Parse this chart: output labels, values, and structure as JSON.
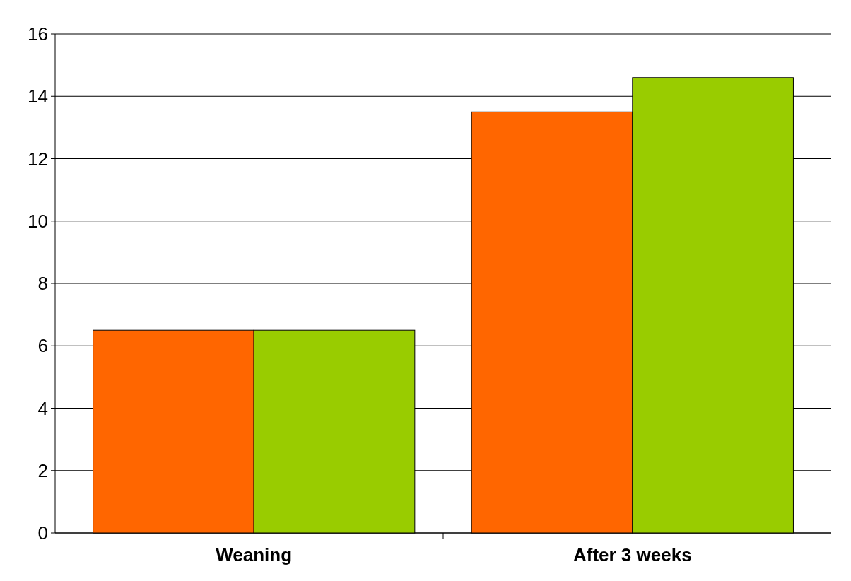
{
  "chart_data": {
    "type": "bar",
    "categories": [
      "Weaning",
      "After 3 weeks"
    ],
    "series": [
      {
        "color": "#ff6600",
        "values": [
          6.5,
          13.5
        ]
      },
      {
        "color": "#99cc00",
        "values": [
          6.5,
          14.6
        ]
      }
    ],
    "ylim": [
      0,
      16
    ],
    "yticks": [
      0,
      2,
      4,
      6,
      8,
      10,
      12,
      14,
      16
    ],
    "grid": "y"
  }
}
